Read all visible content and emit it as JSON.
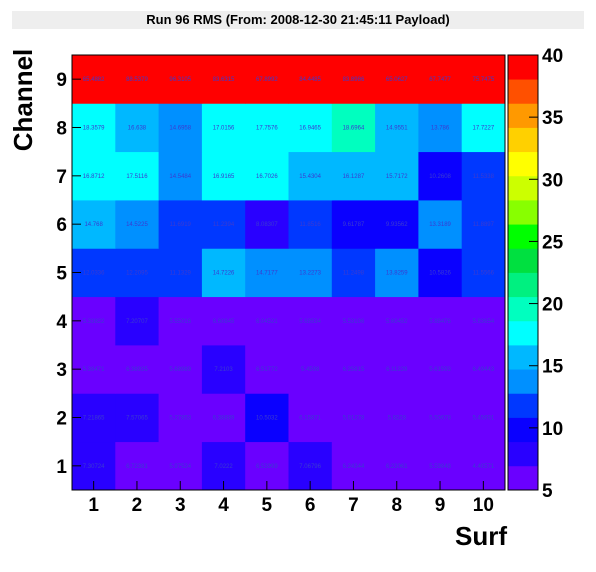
{
  "title": "Run 96 RMS (From: 2008-12-30 21:45:11 Payload)",
  "chart_data": {
    "type": "heatmap",
    "title": "Run 96 RMS (From: 2008-12-30 21:45:11 Payload)",
    "xlabel": "Surf",
    "ylabel": "Channel",
    "x": [
      1,
      2,
      3,
      4,
      5,
      6,
      7,
      8,
      9,
      10
    ],
    "y": [
      1,
      2,
      3,
      4,
      5,
      6,
      7,
      8,
      9
    ],
    "xlim": [
      0.5,
      10.5
    ],
    "ylim": [
      0.5,
      9.5
    ],
    "zlim": [
      5,
      40
    ],
    "x_ticks": [
      "1",
      "2",
      "3",
      "4",
      "5",
      "6",
      "7",
      "8",
      "9",
      "10"
    ],
    "y_ticks": [
      "1",
      "2",
      "3",
      "4",
      "5",
      "6",
      "7",
      "8",
      "9"
    ],
    "palette_ticks": [
      "5",
      "10",
      "15",
      "20",
      "25",
      "30",
      "35",
      "40"
    ],
    "values": [
      [
        "7.30724",
        "6.72381",
        "5.97524",
        "7.0222",
        "6.53999",
        "7.06796",
        "6.24344",
        "6.23061",
        "5.59848",
        "4.40571"
      ],
      [
        "7.21865",
        "7.57065",
        "5.27853",
        "6.38889",
        "10.5032",
        "6.15871",
        "5.91278",
        "5.8228",
        "5.50678",
        "5.45691"
      ],
      [
        "5.38471",
        "6.38935",
        "5.68989",
        "7.2103",
        "6.51772",
        "5.4598",
        "6.25815",
        "6.11229",
        "5.61593",
        "6.49443"
      ],
      [
        "5.33822",
        "7.20707",
        "5.55016",
        "6.60845",
        "6.04521",
        "5.68534",
        "5.53106",
        "5.60452",
        "5.88476",
        "5.83654"
      ],
      [
        "12.0336",
        "12.2095",
        "11.1329",
        "14.7226",
        "14.7177",
        "13.2273",
        "11.2498",
        "13.8259",
        "10.5826",
        "11.5566"
      ],
      [
        "14.768",
        "14.5225",
        "11.6919",
        "11.2394",
        "8.08307",
        "11.8516",
        "9.61787",
        "9.93562",
        "13.3189",
        "11.8897"
      ],
      [
        "16.8712",
        "17.5116",
        "14.5484",
        "16.9165",
        "16.7026",
        "15.4304",
        "16.1287",
        "15.7172",
        "10.2608",
        "11.5338"
      ],
      [
        "18.3579",
        "16.638",
        "14.6958",
        "17.0156",
        "17.7576",
        "16.9465",
        "18.6964",
        "14.9551",
        "13.786",
        "17.7227"
      ],
      [
        "65.4882",
        "88.5379",
        "96.3105",
        "83.6315",
        "67.8992",
        "84.4485",
        "83.8986",
        "65.0627",
        "67.7477",
        "75.7475"
      ]
    ],
    "grid": false,
    "legend": "right color palette"
  }
}
